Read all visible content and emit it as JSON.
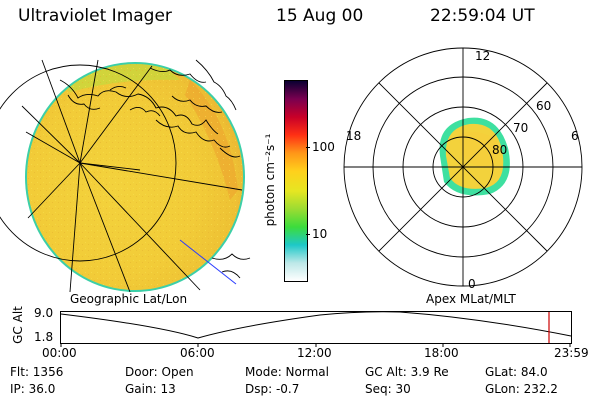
{
  "header": {
    "instrument": "Ultraviolet Imager",
    "date": "15 Aug 00",
    "time": "22:59:04 UT"
  },
  "left_panel": {
    "caption": "Geographic Lat/Lon"
  },
  "right_panel": {
    "caption": "Apex MLat/MLT",
    "mlt_labels": {
      "top": "12",
      "left": "18",
      "right": "6",
      "bottom": "0"
    },
    "lat_labels": [
      "60",
      "70",
      "80"
    ]
  },
  "colorbar": {
    "unit": "photon cm⁻²s⁻¹",
    "ticks": [
      "100",
      "10"
    ],
    "colors": [
      "#ffffff",
      "#bde8e8",
      "#1ec8c8",
      "#3cdc3c",
      "#9cdc32",
      "#e6e622",
      "#ffd01c",
      "#ff9618",
      "#ff3014",
      "#c80028",
      "#7a0050",
      "#0a0032"
    ]
  },
  "altitude_plot": {
    "y_title": "GC Alt",
    "y_ticks": [
      "9.0",
      "1.8"
    ],
    "x_ticks": [
      "00:00",
      "06:00",
      "12:00",
      "18:00",
      "23:59"
    ],
    "marker_color": "#cc0000"
  },
  "status": {
    "flt": "Flt: 1356",
    "ip": "IP: 36.0",
    "door": "Door: Open",
    "gain": "Gain: 13",
    "mode": "Mode: Normal",
    "dsp": "Dsp:    -0.7",
    "gc_alt": "GC Alt: 3.9 Re",
    "seq": "Seq: 30",
    "glat": "GLat:   84.0",
    "glon": "GLon: 232.2"
  }
}
